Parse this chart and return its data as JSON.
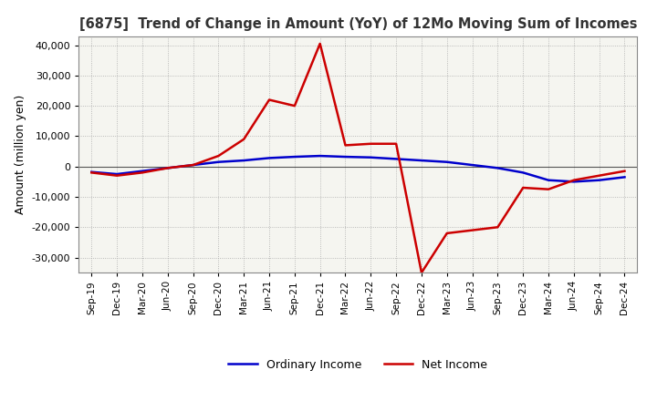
{
  "title": "[6875]  Trend of Change in Amount (YoY) of 12Mo Moving Sum of Incomes",
  "ylabel": "Amount (million yen)",
  "background_color": "#ffffff",
  "plot_bg_color": "#f5f5f0",
  "grid_color": "#aaaaaa",
  "ordinary_income_color": "#0000cc",
  "net_income_color": "#cc0000",
  "ylim": [
    -35000,
    43000
  ],
  "yticks": [
    -30000,
    -20000,
    -10000,
    0,
    10000,
    20000,
    30000,
    40000
  ],
  "dates": [
    "Sep-19",
    "Dec-19",
    "Mar-20",
    "Jun-20",
    "Sep-20",
    "Dec-20",
    "Mar-21",
    "Jun-21",
    "Sep-21",
    "Dec-21",
    "Mar-22",
    "Jun-22",
    "Sep-22",
    "Dec-22",
    "Mar-23",
    "Jun-23",
    "Sep-23",
    "Dec-23",
    "Mar-24",
    "Jun-24",
    "Sep-24",
    "Dec-24"
  ],
  "ordinary_income": [
    -1800,
    -2500,
    -1500,
    -500,
    500,
    1500,
    2000,
    2800,
    3200,
    3500,
    3200,
    3000,
    2500,
    2000,
    1500,
    500,
    -500,
    -2000,
    -4500,
    -5000,
    -4500,
    -3500
  ],
  "net_income": [
    -2000,
    -3000,
    -2000,
    -500,
    500,
    3500,
    9000,
    22000,
    20000,
    40500,
    7000,
    7500,
    7500,
    -35000,
    -22000,
    -21000,
    -20000,
    -7000,
    -7500,
    -4500,
    -3000,
    -1500
  ]
}
